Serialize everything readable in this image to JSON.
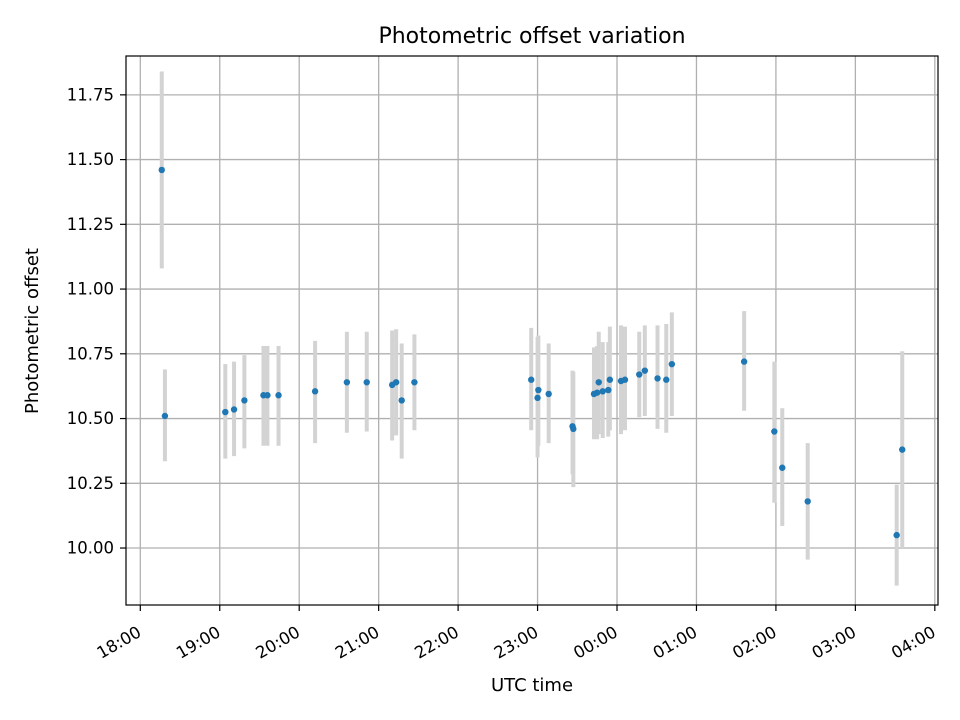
{
  "chart_data": {
    "type": "scatter",
    "title": "Photometric offset variation",
    "xlabel": "UTC time",
    "ylabel": "Photometric offset",
    "grid": true,
    "legend": "none",
    "x_unit": "hours since 18:00 UTC",
    "xlim": [
      -0.18,
      10.04
    ],
    "ylim": [
      9.78,
      11.9
    ],
    "xticks": [
      {
        "v": 0,
        "label": "18:00"
      },
      {
        "v": 1,
        "label": "19:00"
      },
      {
        "v": 2,
        "label": "20:00"
      },
      {
        "v": 3,
        "label": "21:00"
      },
      {
        "v": 4,
        "label": "22:00"
      },
      {
        "v": 5,
        "label": "23:00"
      },
      {
        "v": 6,
        "label": "00:00"
      },
      {
        "v": 7,
        "label": "01:00"
      },
      {
        "v": 8,
        "label": "02:00"
      },
      {
        "v": 9,
        "label": "03:00"
      },
      {
        "v": 10,
        "label": "04:00"
      }
    ],
    "yticks": [
      {
        "v": 10.0,
        "label": "10.00"
      },
      {
        "v": 10.25,
        "label": "10.25"
      },
      {
        "v": 10.5,
        "label": "10.50"
      },
      {
        "v": 10.75,
        "label": "10.75"
      },
      {
        "v": 11.0,
        "label": "11.00"
      },
      {
        "v": 11.25,
        "label": "11.25"
      },
      {
        "v": 11.5,
        "label": "11.50"
      },
      {
        "v": 11.75,
        "label": "11.75"
      }
    ],
    "colors": {
      "point": "#1f77b4",
      "errorbar": "#d3d3d3",
      "grid": "#b0b0b0"
    },
    "points": [
      {
        "x": 0.27,
        "y": 11.46,
        "lo": 11.08,
        "hi": 11.84
      },
      {
        "x": 0.31,
        "y": 10.51,
        "lo": 10.335,
        "hi": 10.69
      },
      {
        "x": 1.07,
        "y": 10.525,
        "lo": 10.345,
        "hi": 10.71
      },
      {
        "x": 1.18,
        "y": 10.535,
        "lo": 10.355,
        "hi": 10.72
      },
      {
        "x": 1.31,
        "y": 10.57,
        "lo": 10.385,
        "hi": 10.745
      },
      {
        "x": 1.55,
        "y": 10.59,
        "lo": 10.395,
        "hi": 10.78
      },
      {
        "x": 1.6,
        "y": 10.59,
        "lo": 10.395,
        "hi": 10.78
      },
      {
        "x": 1.74,
        "y": 10.59,
        "lo": 10.395,
        "hi": 10.78
      },
      {
        "x": 2.2,
        "y": 10.605,
        "lo": 10.405,
        "hi": 10.8
      },
      {
        "x": 2.6,
        "y": 10.64,
        "lo": 10.445,
        "hi": 10.835
      },
      {
        "x": 2.85,
        "y": 10.64,
        "lo": 10.45,
        "hi": 10.835
      },
      {
        "x": 3.17,
        "y": 10.63,
        "lo": 10.415,
        "hi": 10.84
      },
      {
        "x": 3.22,
        "y": 10.64,
        "lo": 10.435,
        "hi": 10.845
      },
      {
        "x": 3.29,
        "y": 10.57,
        "lo": 10.345,
        "hi": 10.79
      },
      {
        "x": 3.45,
        "y": 10.64,
        "lo": 10.455,
        "hi": 10.825
      },
      {
        "x": 4.92,
        "y": 10.65,
        "lo": 10.455,
        "hi": 10.85
      },
      {
        "x": 5.0,
        "y": 10.58,
        "lo": 10.35,
        "hi": 10.815
      },
      {
        "x": 5.01,
        "y": 10.61,
        "lo": 10.395,
        "hi": 10.82
      },
      {
        "x": 5.14,
        "y": 10.595,
        "lo": 10.405,
        "hi": 10.79
      },
      {
        "x": 5.44,
        "y": 10.47,
        "lo": 10.285,
        "hi": 10.685
      },
      {
        "x": 5.45,
        "y": 10.46,
        "lo": 10.235,
        "hi": 10.68
      },
      {
        "x": 5.71,
        "y": 10.595,
        "lo": 10.42,
        "hi": 10.775
      },
      {
        "x": 5.75,
        "y": 10.6,
        "lo": 10.42,
        "hi": 10.78
      },
      {
        "x": 5.77,
        "y": 10.64,
        "lo": 10.44,
        "hi": 10.835
      },
      {
        "x": 5.82,
        "y": 10.605,
        "lo": 10.425,
        "hi": 10.795
      },
      {
        "x": 5.89,
        "y": 10.61,
        "lo": 10.43,
        "hi": 10.795
      },
      {
        "x": 5.91,
        "y": 10.65,
        "lo": 10.455,
        "hi": 10.855
      },
      {
        "x": 6.05,
        "y": 10.645,
        "lo": 10.44,
        "hi": 10.86
      },
      {
        "x": 6.1,
        "y": 10.65,
        "lo": 10.455,
        "hi": 10.855
      },
      {
        "x": 6.28,
        "y": 10.67,
        "lo": 10.505,
        "hi": 10.835
      },
      {
        "x": 6.35,
        "y": 10.685,
        "lo": 10.51,
        "hi": 10.86
      },
      {
        "x": 6.51,
        "y": 10.655,
        "lo": 10.46,
        "hi": 10.86
      },
      {
        "x": 6.62,
        "y": 10.65,
        "lo": 10.445,
        "hi": 10.865
      },
      {
        "x": 6.69,
        "y": 10.71,
        "lo": 10.51,
        "hi": 10.91
      },
      {
        "x": 7.6,
        "y": 10.72,
        "lo": 10.53,
        "hi": 10.915
      },
      {
        "x": 7.98,
        "y": 10.45,
        "lo": 10.175,
        "hi": 10.72
      },
      {
        "x": 8.08,
        "y": 10.31,
        "lo": 10.085,
        "hi": 10.54
      },
      {
        "x": 8.4,
        "y": 10.18,
        "lo": 9.955,
        "hi": 10.405
      },
      {
        "x": 9.52,
        "y": 10.05,
        "lo": 9.855,
        "hi": 10.245
      },
      {
        "x": 9.59,
        "y": 10.38,
        "lo": 10.0,
        "hi": 10.76
      }
    ]
  }
}
